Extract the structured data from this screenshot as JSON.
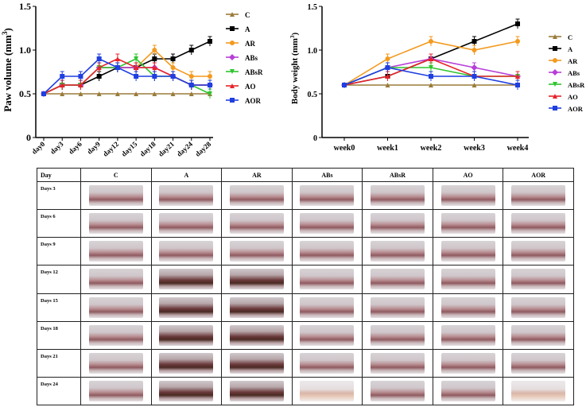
{
  "chart_data": [
    {
      "type": "line",
      "ylabel_text": "Paw volume (mm",
      "ylabel_sup": "3",
      "ylabel_close": ")",
      "x": [
        "day0",
        "day3",
        "day6",
        "day9",
        "day12",
        "day15",
        "day18",
        "day21",
        "day24",
        "day28"
      ],
      "ylim": [
        0,
        1.5
      ],
      "yticks": [
        "0",
        "0.5",
        "1.0",
        "1.5"
      ],
      "series": [
        {
          "name": "C",
          "color": "#9a7b3a",
          "marker": "triangle",
          "values": [
            0.5,
            0.5,
            0.5,
            0.5,
            0.5,
            0.5,
            0.5,
            0.5,
            0.5,
            0.5
          ]
        },
        {
          "name": "A",
          "color": "#000000",
          "marker": "square",
          "values": [
            0.5,
            0.6,
            0.6,
            0.7,
            0.8,
            0.8,
            0.9,
            0.9,
            1.0,
            1.1
          ]
        },
        {
          "name": "AR",
          "color": "#f39a1f",
          "marker": "circle",
          "values": [
            0.5,
            0.6,
            0.6,
            0.8,
            0.8,
            0.8,
            1.0,
            0.8,
            0.7,
            0.7
          ]
        },
        {
          "name": "ABs",
          "color": "#b73fd8",
          "marker": "diamond",
          "values": [
            0.5,
            0.6,
            0.6,
            0.8,
            0.8,
            0.8,
            0.8,
            0.7,
            0.6,
            0.6
          ]
        },
        {
          "name": "ABsR",
          "color": "#2ec52e",
          "marker": "triangle-down",
          "values": [
            0.5,
            0.6,
            0.6,
            0.8,
            0.8,
            0.9,
            0.7,
            0.7,
            0.6,
            0.5
          ]
        },
        {
          "name": "AO",
          "color": "#e8232a",
          "marker": "triangle",
          "values": [
            0.5,
            0.6,
            0.6,
            0.8,
            0.9,
            0.8,
            0.8,
            0.7,
            0.6,
            0.6
          ]
        },
        {
          "name": "AOR",
          "color": "#1f3fe0",
          "marker": "square",
          "values": [
            0.5,
            0.7,
            0.7,
            0.9,
            0.8,
            0.7,
            0.7,
            0.7,
            0.6,
            0.6
          ]
        }
      ]
    },
    {
      "type": "line",
      "ylabel_text": "Body weight (mm",
      "ylabel_sup": "3",
      "ylabel_close": ")",
      "x": [
        "week0",
        "week1",
        "week2",
        "week3",
        "week4"
      ],
      "ylim": [
        0,
        1.5
      ],
      "yticks": [
        "0",
        "0.5",
        "1.0",
        "1.5"
      ],
      "series": [
        {
          "name": "C",
          "color": "#9a7b3a",
          "marker": "triangle",
          "values": [
            0.6,
            0.6,
            0.6,
            0.6,
            0.6
          ]
        },
        {
          "name": "A",
          "color": "#000000",
          "marker": "square",
          "values": [
            0.6,
            0.7,
            0.9,
            1.1,
            1.3
          ]
        },
        {
          "name": "AR",
          "color": "#f39a1f",
          "marker": "circle",
          "values": [
            0.6,
            0.9,
            1.1,
            1.0,
            1.1
          ]
        },
        {
          "name": "ABs",
          "color": "#b73fd8",
          "marker": "diamond",
          "values": [
            0.6,
            0.8,
            0.9,
            0.8,
            0.7
          ]
        },
        {
          "name": "ABsR",
          "color": "#2ec52e",
          "marker": "triangle-down",
          "values": [
            0.6,
            0.8,
            0.8,
            0.7,
            0.7
          ]
        },
        {
          "name": "AO",
          "color": "#e8232a",
          "marker": "triangle",
          "values": [
            0.6,
            0.7,
            0.9,
            0.7,
            0.7
          ]
        },
        {
          "name": "AOR",
          "color": "#1f3fe0",
          "marker": "square",
          "values": [
            0.6,
            0.8,
            0.7,
            0.7,
            0.6
          ]
        }
      ]
    }
  ],
  "photo_table": {
    "corner": "Day",
    "columns": [
      "C",
      "A",
      "AR",
      "ABs",
      "ABsR",
      "AO",
      "AOR"
    ],
    "rows": [
      "Days 3",
      "Days 6",
      "Days 9",
      "Days 12",
      "Days 15",
      "Days 18",
      "Days 21",
      "Days 24"
    ]
  }
}
